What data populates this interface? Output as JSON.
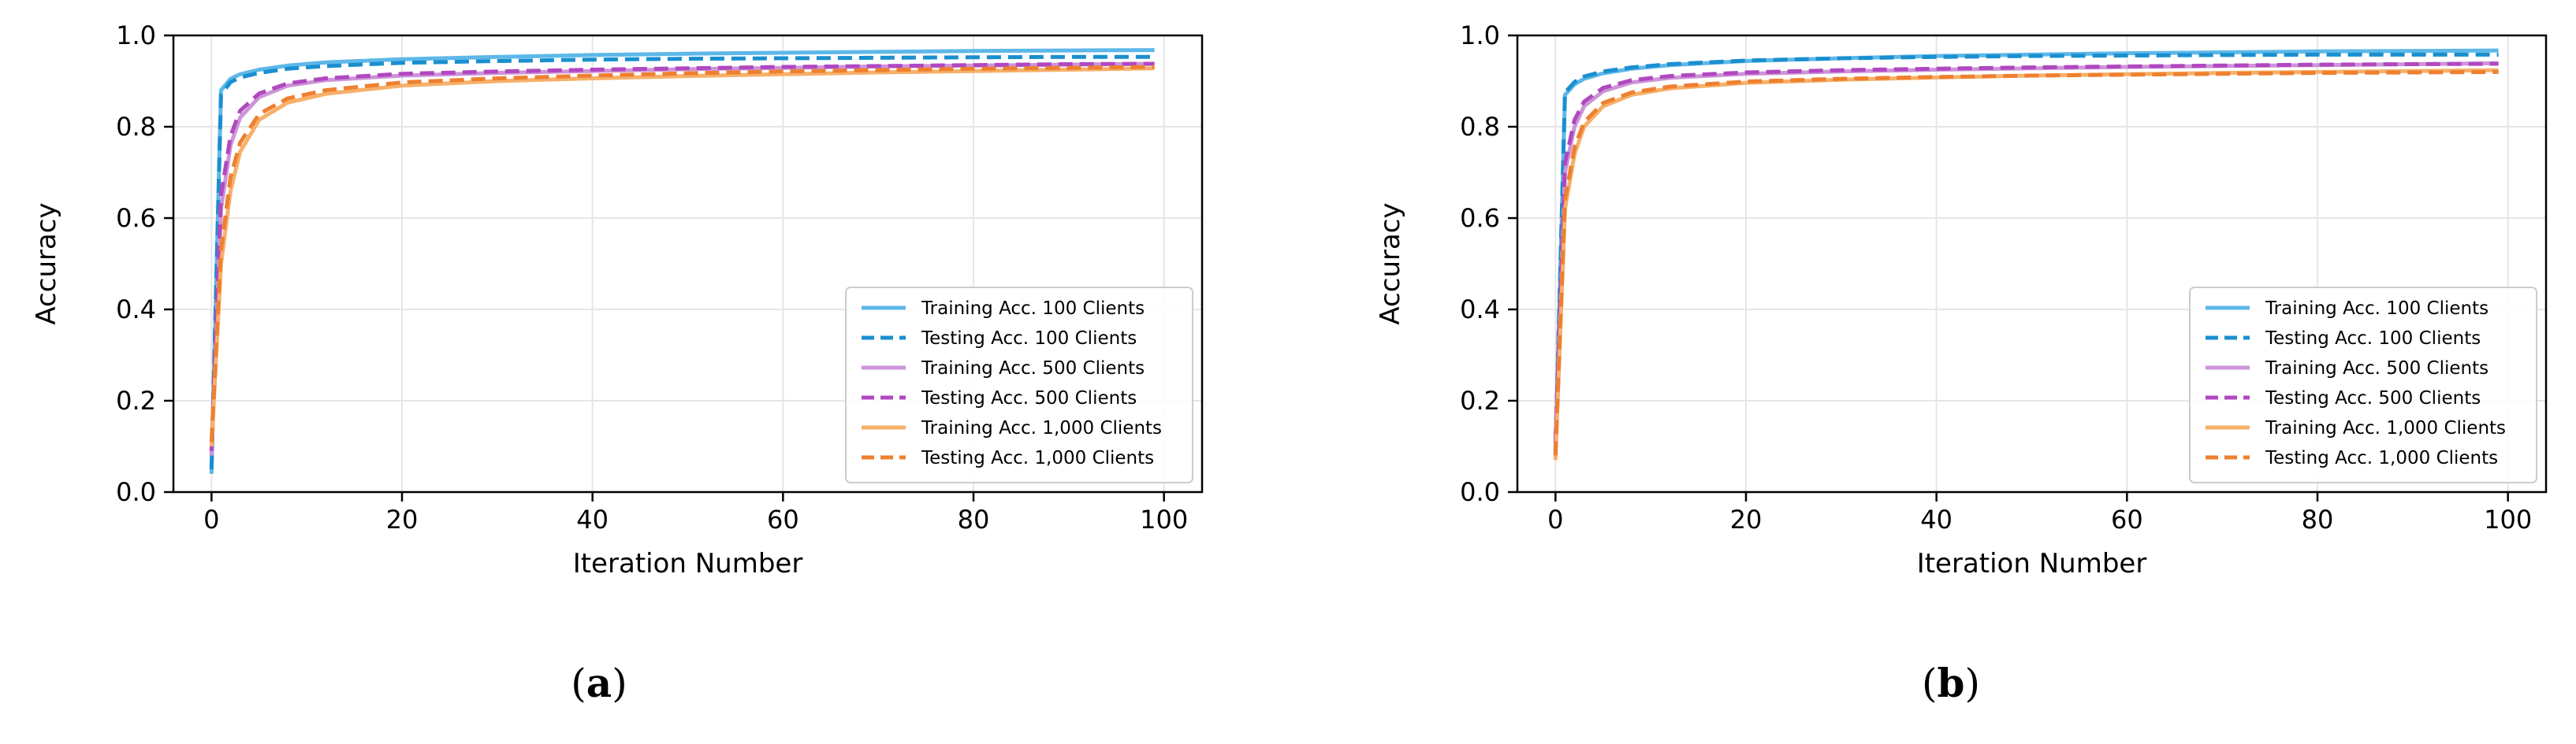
{
  "chart_data": [
    {
      "type": "line",
      "panel_label": "(a)",
      "panel_letter": "a",
      "xlabel": "Iteration Number",
      "ylabel": "Accuracy",
      "xlim": [
        -4,
        104
      ],
      "ylim": [
        0.0,
        1.0
      ],
      "xticks": [
        0,
        20,
        40,
        60,
        80,
        100
      ],
      "yticks": [
        0.0,
        0.2,
        0.4,
        0.6,
        0.8,
        1.0
      ],
      "xtick_labels": [
        "0",
        "20",
        "40",
        "60",
        "80",
        "100"
      ],
      "ytick_labels": [
        "0.0",
        "0.2",
        "0.4",
        "0.6",
        "0.8",
        "1.0"
      ],
      "grid": true,
      "legend_position": "lower-right",
      "series": [
        {
          "name": "Training Acc. 100 Clients",
          "color": "#5DB8E8",
          "style": "solid",
          "x": [
            0,
            1,
            2,
            3,
            5,
            8,
            12,
            20,
            30,
            40,
            50,
            60,
            70,
            80,
            90,
            99
          ],
          "y": [
            0.04,
            0.88,
            0.905,
            0.915,
            0.925,
            0.934,
            0.941,
            0.948,
            0.953,
            0.957,
            0.96,
            0.962,
            0.964,
            0.966,
            0.967,
            0.968
          ]
        },
        {
          "name": "Testing Acc. 100 Clients",
          "color": "#1A8FCF",
          "style": "dashed",
          "x": [
            0,
            1,
            2,
            3,
            5,
            8,
            12,
            20,
            30,
            40,
            50,
            60,
            70,
            80,
            90,
            99
          ],
          "y": [
            0.05,
            0.87,
            0.898,
            0.908,
            0.918,
            0.927,
            0.933,
            0.94,
            0.944,
            0.947,
            0.949,
            0.95,
            0.951,
            0.952,
            0.953,
            0.953
          ]
        },
        {
          "name": "Training Acc. 500 Clients",
          "color": "#CE93D8",
          "style": "solid",
          "x": [
            0,
            1,
            2,
            3,
            5,
            8,
            12,
            20,
            30,
            40,
            50,
            60,
            70,
            80,
            90,
            99
          ],
          "y": [
            0.08,
            0.62,
            0.76,
            0.82,
            0.865,
            0.89,
            0.902,
            0.912,
            0.918,
            0.922,
            0.926,
            0.929,
            0.932,
            0.934,
            0.936,
            0.938
          ]
        },
        {
          "name": "Testing Acc. 500 Clients",
          "color": "#B048C0",
          "style": "dashed",
          "x": [
            0,
            1,
            2,
            3,
            5,
            8,
            12,
            20,
            30,
            40,
            50,
            60,
            70,
            80,
            90,
            99
          ],
          "y": [
            0.09,
            0.65,
            0.78,
            0.835,
            0.873,
            0.895,
            0.906,
            0.916,
            0.921,
            0.925,
            0.928,
            0.931,
            0.933,
            0.935,
            0.937,
            0.938
          ]
        },
        {
          "name": "Training Acc. 1,000 Clients",
          "color": "#F6B06A",
          "style": "solid",
          "x": [
            0,
            1,
            2,
            3,
            5,
            8,
            12,
            20,
            30,
            40,
            50,
            60,
            70,
            80,
            90,
            99
          ],
          "y": [
            0.1,
            0.5,
            0.66,
            0.745,
            0.815,
            0.853,
            0.872,
            0.89,
            0.9,
            0.906,
            0.911,
            0.915,
            0.919,
            0.922,
            0.925,
            0.928
          ]
        },
        {
          "name": "Testing Acc. 1,000 Clients",
          "color": "#EE8030",
          "style": "dashed",
          "x": [
            0,
            1,
            2,
            3,
            5,
            8,
            12,
            20,
            30,
            40,
            50,
            60,
            70,
            80,
            90,
            99
          ],
          "y": [
            0.11,
            0.53,
            0.69,
            0.765,
            0.828,
            0.862,
            0.88,
            0.897,
            0.906,
            0.912,
            0.917,
            0.921,
            0.924,
            0.927,
            0.929,
            0.931
          ]
        }
      ]
    },
    {
      "type": "line",
      "panel_label": "(b)",
      "panel_letter": "b",
      "xlabel": "Iteration Number",
      "ylabel": "Accuracy",
      "xlim": [
        -4,
        104
      ],
      "ylim": [
        0.0,
        1.0
      ],
      "xticks": [
        0,
        20,
        40,
        60,
        80,
        100
      ],
      "yticks": [
        0.0,
        0.2,
        0.4,
        0.6,
        0.8,
        1.0
      ],
      "xtick_labels": [
        "0",
        "20",
        "40",
        "60",
        "80",
        "100"
      ],
      "ytick_labels": [
        "0.0",
        "0.2",
        "0.4",
        "0.6",
        "0.8",
        "1.0"
      ],
      "grid": true,
      "legend_position": "lower-right",
      "series": [
        {
          "name": "Training Acc. 100 Clients",
          "color": "#5DB8E8",
          "style": "solid",
          "x": [
            0,
            1,
            2,
            3,
            5,
            8,
            12,
            20,
            30,
            40,
            50,
            60,
            70,
            80,
            90,
            99
          ],
          "y": [
            0.08,
            0.87,
            0.893,
            0.905,
            0.917,
            0.927,
            0.935,
            0.944,
            0.95,
            0.955,
            0.958,
            0.961,
            0.963,
            0.965,
            0.966,
            0.967
          ]
        },
        {
          "name": "Testing Acc. 100 Clients",
          "color": "#1A8FCF",
          "style": "dashed",
          "x": [
            0,
            1,
            2,
            3,
            5,
            8,
            12,
            20,
            30,
            40,
            50,
            60,
            70,
            80,
            90,
            99
          ],
          "y": [
            0.09,
            0.875,
            0.898,
            0.91,
            0.921,
            0.93,
            0.937,
            0.945,
            0.95,
            0.953,
            0.955,
            0.956,
            0.957,
            0.958,
            0.958,
            0.958
          ]
        },
        {
          "name": "Training Acc. 500 Clients",
          "color": "#CE93D8",
          "style": "solid",
          "x": [
            0,
            1,
            2,
            3,
            5,
            8,
            12,
            20,
            30,
            40,
            50,
            60,
            70,
            80,
            90,
            99
          ],
          "y": [
            0.1,
            0.7,
            0.8,
            0.845,
            0.878,
            0.897,
            0.907,
            0.916,
            0.921,
            0.925,
            0.928,
            0.931,
            0.933,
            0.935,
            0.937,
            0.939
          ]
        },
        {
          "name": "Testing Acc. 500 Clients",
          "color": "#B048C0",
          "style": "dashed",
          "x": [
            0,
            1,
            2,
            3,
            5,
            8,
            12,
            20,
            30,
            40,
            50,
            60,
            70,
            80,
            90,
            99
          ],
          "y": [
            0.11,
            0.72,
            0.815,
            0.855,
            0.885,
            0.902,
            0.911,
            0.919,
            0.924,
            0.927,
            0.93,
            0.932,
            0.934,
            0.936,
            0.937,
            0.938
          ]
        },
        {
          "name": "Training Acc. 1,000 Clients",
          "color": "#F6B06A",
          "style": "solid",
          "x": [
            0,
            1,
            2,
            3,
            5,
            8,
            12,
            20,
            30,
            40,
            50,
            60,
            70,
            80,
            90,
            99
          ],
          "y": [
            0.07,
            0.62,
            0.74,
            0.8,
            0.845,
            0.87,
            0.884,
            0.896,
            0.903,
            0.908,
            0.912,
            0.915,
            0.918,
            0.92,
            0.922,
            0.924
          ]
        },
        {
          "name": "Testing Acc. 1,000 Clients",
          "color": "#EE8030",
          "style": "dashed",
          "x": [
            0,
            1,
            2,
            3,
            5,
            8,
            12,
            20,
            30,
            40,
            50,
            60,
            70,
            80,
            90,
            99
          ],
          "y": [
            0.08,
            0.64,
            0.755,
            0.81,
            0.852,
            0.875,
            0.888,
            0.899,
            0.905,
            0.909,
            0.912,
            0.914,
            0.916,
            0.918,
            0.919,
            0.92
          ]
        }
      ]
    }
  ]
}
